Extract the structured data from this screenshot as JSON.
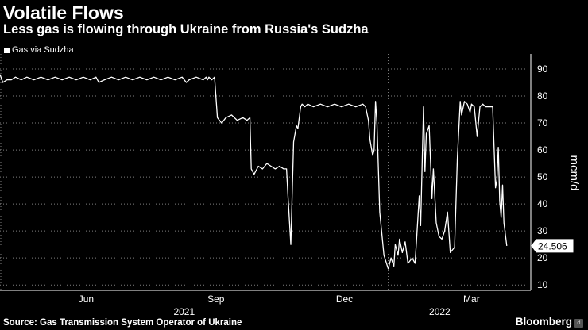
{
  "header": {
    "title": "Volatile Flows",
    "subtitle": "Less gas is flowing through Ukraine from Russia's Sudzha"
  },
  "legend": {
    "label": "Gas via Sudzha"
  },
  "footer": {
    "source": "Source: Gas Transmission System Operator of Ukraine",
    "brand": "Bloomberg"
  },
  "colors": {
    "background": "#000000",
    "line": "#ffffff",
    "grid": "#808080"
  },
  "chart_data": {
    "type": "line",
    "title": "Volatile Flows",
    "subtitle": "Less gas is flowing through Ukraine from Russia's Sudzha",
    "ylabel": "mcm/d",
    "xlabel": "",
    "ylim": [
      8,
      95
    ],
    "yticks": [
      10,
      20,
      30,
      40,
      50,
      60,
      70,
      80,
      90
    ],
    "grid": "horizontal dotted",
    "legend": "top-left",
    "x_tick_labels": [
      {
        "date": "2021-06-01",
        "label": "Jun"
      },
      {
        "date": "2021-09-01",
        "label": "Sep"
      },
      {
        "date": "2021-12-01",
        "label": "Dec"
      },
      {
        "date": "2022-03-01",
        "label": "Mar"
      }
    ],
    "x_year_labels": [
      {
        "date": "2021-09-01",
        "label": "2021"
      },
      {
        "date": "2022-03-01",
        "label": "2022"
      }
    ],
    "xlim": [
      "2021-04-01",
      "2022-04-12"
    ],
    "last_value_label": "24.506",
    "series": [
      {
        "name": "Gas via Sudzha",
        "x": [
          "2021-04-01",
          "2021-04-03",
          "2021-04-06",
          "2021-04-09",
          "2021-04-12",
          "2021-04-16",
          "2021-04-20",
          "2021-04-25",
          "2021-04-30",
          "2021-05-05",
          "2021-05-10",
          "2021-05-15",
          "2021-05-20",
          "2021-05-25",
          "2021-05-30",
          "2021-06-04",
          "2021-06-08",
          "2021-06-10",
          "2021-06-14",
          "2021-06-19",
          "2021-06-24",
          "2021-06-29",
          "2021-07-04",
          "2021-07-09",
          "2021-07-14",
          "2021-07-19",
          "2021-07-24",
          "2021-07-29",
          "2021-08-03",
          "2021-08-08",
          "2021-08-11",
          "2021-08-13",
          "2021-08-18",
          "2021-08-23",
          "2021-08-25",
          "2021-08-26",
          "2021-08-27",
          "2021-08-29",
          "2021-08-31",
          "2021-09-02",
          "2021-09-05",
          "2021-09-08",
          "2021-09-12",
          "2021-09-16",
          "2021-09-20",
          "2021-09-23",
          "2021-09-25",
          "2021-09-26",
          "2021-09-28",
          "2021-10-01",
          "2021-10-04",
          "2021-10-07",
          "2021-10-10",
          "2021-10-13",
          "2021-10-16",
          "2021-10-19",
          "2021-10-21",
          "2021-10-22",
          "2021-10-24",
          "2021-10-26",
          "2021-10-28",
          "2021-10-29",
          "2021-10-31",
          "2021-11-01",
          "2021-11-03",
          "2021-11-05",
          "2021-11-09",
          "2021-11-14",
          "2021-11-19",
          "2021-11-24",
          "2021-11-29",
          "2021-12-04",
          "2021-12-09",
          "2021-12-14",
          "2021-12-16",
          "2021-12-18",
          "2021-12-19",
          "2021-12-21",
          "2021-12-22",
          "2021-12-23",
          "2021-12-24",
          "2021-12-26",
          "2021-12-29",
          "2022-01-01",
          "2022-01-03",
          "2022-01-05",
          "2022-01-06",
          "2022-01-08",
          "2022-01-09",
          "2022-01-11",
          "2022-01-13",
          "2022-01-15",
          "2022-01-18",
          "2022-01-20",
          "2022-01-21",
          "2022-01-23",
          "2022-01-24",
          "2022-01-26",
          "2022-01-27",
          "2022-01-28",
          "2022-01-30",
          "2022-02-01",
          "2022-02-02",
          "2022-02-04",
          "2022-02-06",
          "2022-02-08",
          "2022-02-10",
          "2022-02-12",
          "2022-02-14",
          "2022-02-17",
          "2022-02-19",
          "2022-02-21",
          "2022-02-22",
          "2022-02-24",
          "2022-02-26",
          "2022-02-28",
          "2022-03-01",
          "2022-03-03",
          "2022-03-05",
          "2022-03-07",
          "2022-03-09",
          "2022-03-11",
          "2022-03-14",
          "2022-03-16",
          "2022-03-17",
          "2022-03-18",
          "2022-03-19",
          "2022-03-20",
          "2022-03-21",
          "2022-03-22",
          "2022-03-23",
          "2022-03-24",
          "2022-03-26"
        ],
        "y": [
          88,
          85,
          86,
          86,
          87,
          86,
          87,
          86,
          87,
          86,
          87,
          86,
          87,
          86,
          87,
          86,
          87,
          85,
          86,
          87,
          86,
          87,
          86,
          87,
          86,
          87,
          86,
          87,
          86,
          87,
          85,
          86,
          87,
          86,
          87,
          86,
          87,
          86,
          87,
          72,
          70,
          72,
          73,
          71,
          72,
          71,
          72,
          53,
          51,
          54,
          53,
          55,
          54,
          53,
          54,
          53,
          53,
          43,
          25,
          63,
          69,
          68,
          76,
          77,
          76,
          77,
          76,
          77,
          76,
          77,
          76,
          77,
          76,
          77,
          76,
          71,
          64,
          58,
          60,
          78,
          70,
          37,
          21,
          16,
          20,
          17,
          25,
          21,
          27,
          22,
          26,
          18,
          20,
          18,
          26,
          43,
          32,
          76,
          52,
          66,
          69,
          42,
          53,
          33,
          28,
          27,
          30,
          37,
          22,
          24,
          57,
          78,
          73,
          78,
          77,
          74,
          77,
          76,
          65,
          76,
          77,
          76,
          76,
          76,
          61,
          46,
          49,
          61,
          41,
          35,
          47,
          33,
          24.5
        ]
      }
    ]
  }
}
